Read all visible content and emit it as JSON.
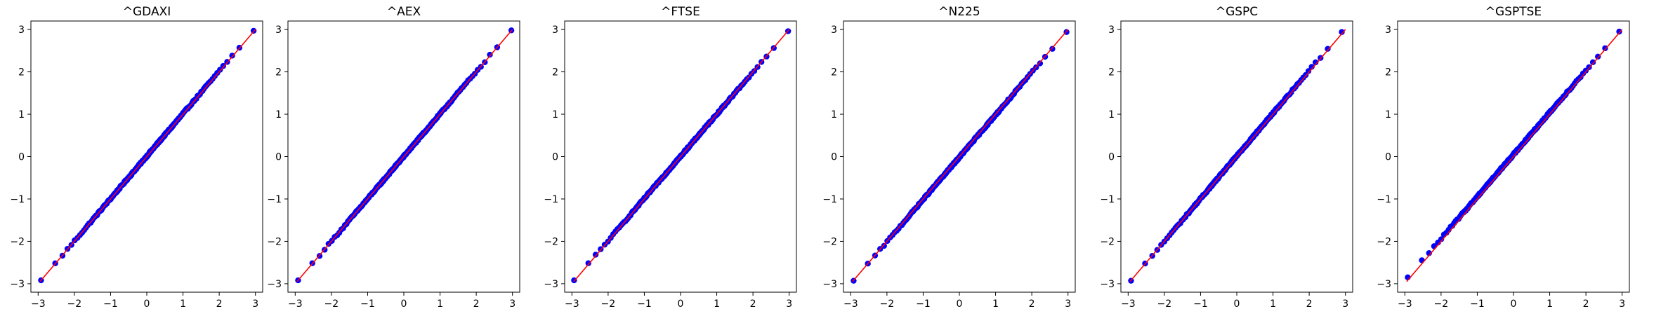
{
  "chart_data": [
    {
      "type": "scatter",
      "title": "^GDAXI",
      "xlim": [
        -3.2,
        3.2
      ],
      "ylim": [
        -3.2,
        3.2
      ],
      "xticks": [
        "−3",
        "−2",
        "−1",
        "0",
        "1",
        "2",
        "3"
      ],
      "yticks": [
        "−3",
        "−2",
        "−1",
        "0",
        "1",
        "2",
        "3"
      ],
      "grid": false,
      "series": [
        {
          "kind": "line",
          "color": "#ff0000",
          "x": [
            -2.95,
            3.0
          ],
          "y": [
            -2.95,
            3.0
          ]
        },
        {
          "kind": "points",
          "color": "#0000ff",
          "x_range": [
            -2.92,
            2.95
          ],
          "y_first": -2.92,
          "y_last": 2.97,
          "n_points": 200
        }
      ]
    },
    {
      "type": "scatter",
      "title": "^AEX",
      "xlim": [
        -3.2,
        3.2
      ],
      "ylim": [
        -3.2,
        3.2
      ],
      "xticks": [
        "−3",
        "−2",
        "−1",
        "0",
        "1",
        "2",
        "3"
      ],
      "yticks": [
        "−3",
        "−2",
        "−1",
        "0",
        "1",
        "2",
        "3"
      ],
      "grid": false,
      "series": [
        {
          "kind": "line",
          "color": "#ff0000",
          "x": [
            -2.95,
            3.0
          ],
          "y": [
            -2.95,
            3.0
          ]
        },
        {
          "kind": "points",
          "color": "#0000ff",
          "x_range": [
            -2.92,
            2.97
          ],
          "y_first": -2.92,
          "y_last": 2.98,
          "n_points": 200
        }
      ]
    },
    {
      "type": "scatter",
      "title": "^FTSE",
      "xlim": [
        -3.2,
        3.2
      ],
      "ylim": [
        -3.2,
        3.2
      ],
      "xticks": [
        "−3",
        "−2",
        "−1",
        "0",
        "1",
        "2",
        "3"
      ],
      "yticks": [
        "−3",
        "−2",
        "−1",
        "0",
        "1",
        "2",
        "3"
      ],
      "grid": false,
      "series": [
        {
          "kind": "line",
          "color": "#ff0000",
          "x": [
            -2.95,
            3.0
          ],
          "y": [
            -2.95,
            3.0
          ]
        },
        {
          "kind": "points",
          "color": "#0000ff",
          "x_range": [
            -2.94,
            2.97
          ],
          "y_first": -2.92,
          "y_last": 2.96,
          "n_points": 200
        }
      ]
    },
    {
      "type": "scatter",
      "title": "^N225",
      "xlim": [
        -3.2,
        3.2
      ],
      "ylim": [
        -3.2,
        3.2
      ],
      "xticks": [
        "−3",
        "−2",
        "−1",
        "0",
        "1",
        "2",
        "3"
      ],
      "yticks": [
        "−3",
        "−2",
        "−1",
        "0",
        "1",
        "2",
        "3"
      ],
      "grid": false,
      "series": [
        {
          "kind": "line",
          "color": "#ff0000",
          "x": [
            -2.95,
            3.0
          ],
          "y": [
            -2.95,
            3.0
          ]
        },
        {
          "kind": "points",
          "color": "#0000ff",
          "x_range": [
            -2.92,
            2.96
          ],
          "y_first": -2.93,
          "y_last": 2.94,
          "n_points": 200
        }
      ]
    },
    {
      "type": "scatter",
      "title": "^GSPC",
      "xlim": [
        -3.2,
        3.2
      ],
      "ylim": [
        -3.2,
        3.2
      ],
      "xticks": [
        "−3",
        "−2",
        "−1",
        "0",
        "1",
        "2",
        "3"
      ],
      "yticks": [
        "−3",
        "−2",
        "−1",
        "0",
        "1",
        "2",
        "3"
      ],
      "grid": false,
      "series": [
        {
          "kind": "line",
          "color": "#ff0000",
          "x": [
            -2.95,
            3.0
          ],
          "y": [
            -2.95,
            3.0
          ]
        },
        {
          "kind": "points",
          "color": "#0000ff",
          "x_range": [
            -2.92,
            2.9
          ],
          "y_first": -2.93,
          "y_last": 2.94,
          "n_points": 200
        }
      ]
    },
    {
      "type": "scatter",
      "title": "^GSPTSE",
      "xlim": [
        -3.2,
        3.2
      ],
      "ylim": [
        -3.2,
        3.2
      ],
      "xticks": [
        "−3",
        "−2",
        "−1",
        "0",
        "1",
        "2",
        "3"
      ],
      "yticks": [
        "−3",
        "−2",
        "−1",
        "0",
        "1",
        "2",
        "3"
      ],
      "grid": false,
      "series": [
        {
          "kind": "line",
          "color": "#ff0000",
          "x": [
            -2.95,
            3.0
          ],
          "y": [
            -2.95,
            3.0
          ]
        },
        {
          "kind": "points",
          "color": "#0000ff",
          "x_range": [
            -2.92,
            2.92
          ],
          "y_first": -2.85,
          "y_last": 2.95,
          "n_points": 200
        }
      ]
    }
  ]
}
